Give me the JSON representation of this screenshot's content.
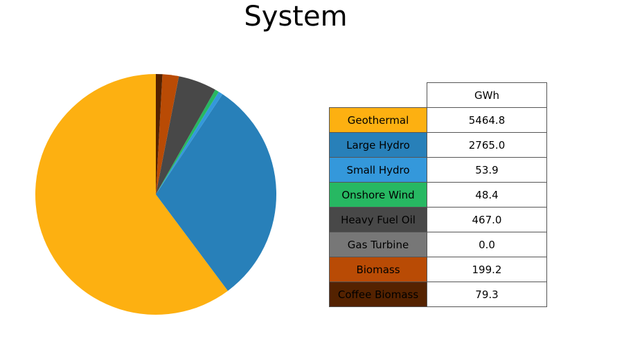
{
  "chart_data": {
    "type": "pie",
    "title": "System",
    "column_header": "GWh",
    "categories": [
      "Geothermal",
      "Large Hydro",
      "Small Hydro",
      "Onshore Wind",
      "Heavy Fuel Oil",
      "Gas Turbine",
      "Biomass",
      "Coffee Biomass"
    ],
    "values": [
      5464.8,
      2765.0,
      53.9,
      48.4,
      467.0,
      0.0,
      199.2,
      79.3
    ],
    "value_labels": [
      "5464.8",
      "2765.0",
      "53.9",
      "48.4",
      "467.0",
      "0.0",
      "199.2",
      "79.3"
    ],
    "colors": [
      "#fdb011",
      "#2880b9",
      "#3498db",
      "#27b862",
      "#484848",
      "#777777",
      "#b94b05",
      "#542200"
    ],
    "start_angle_deg": 90,
    "direction": "counterclockwise"
  }
}
